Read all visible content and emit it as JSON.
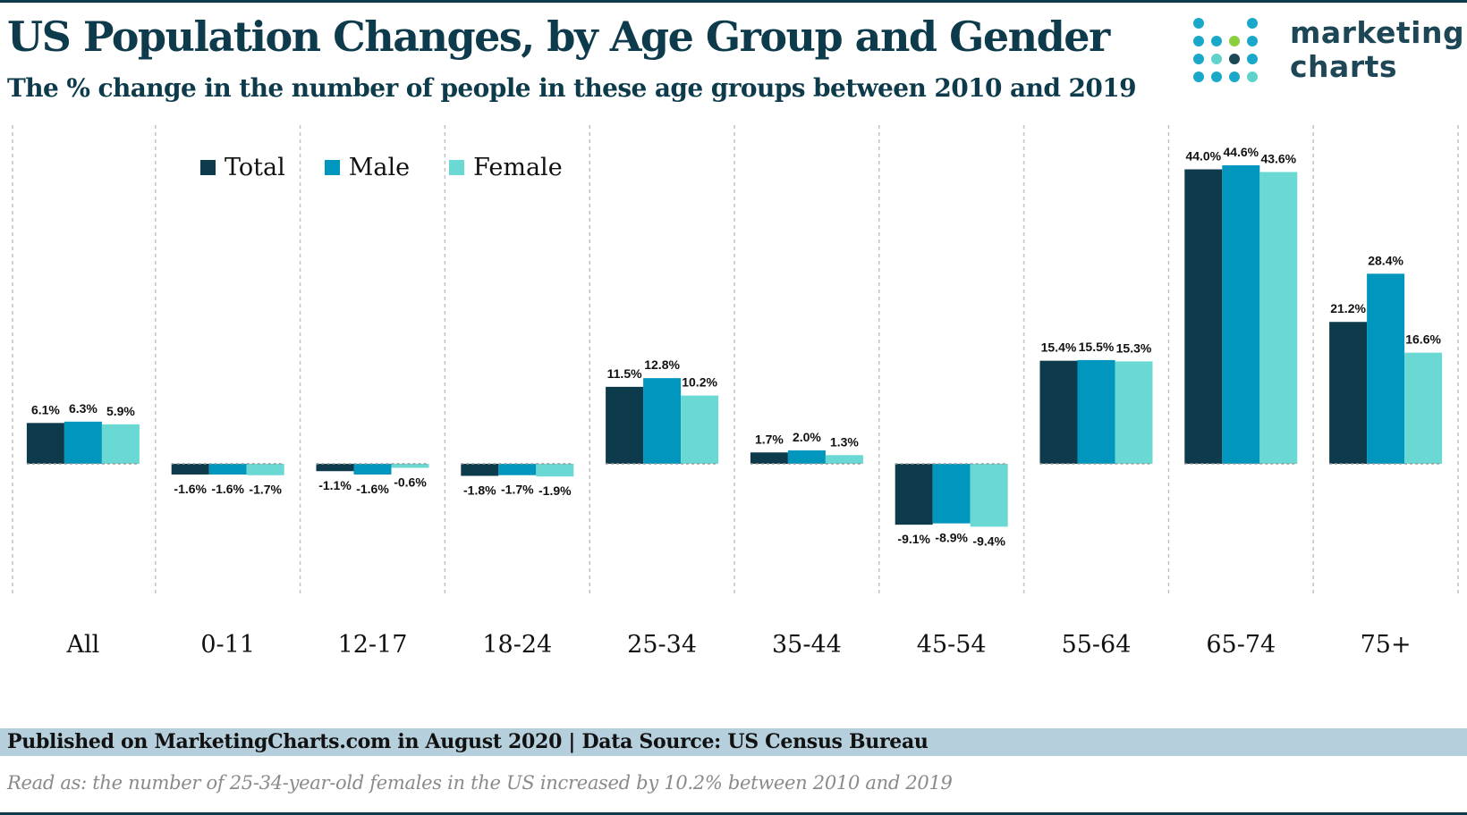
{
  "header": {
    "title": "US Population Changes, by Age Group and Gender",
    "subtitle": "The % change  in the number of people in these age groups between 2010 and 2019"
  },
  "logo": {
    "line1": "marketing",
    "line2": "charts",
    "colors": [
      "#1aa8c9",
      "#1d4656",
      "#8ccf3e",
      "#5fd3c9"
    ]
  },
  "colors": {
    "total": "#0e3b4c",
    "male": "#0096be",
    "female": "#6ad9d3",
    "footer_bg": "#b6cfdc"
  },
  "chart_data": {
    "type": "bar",
    "categories": [
      "All",
      "0-11",
      "12-17",
      "18-24",
      "25-34",
      "35-44",
      "45-54",
      "55-64",
      "65-74",
      "75+"
    ],
    "series": [
      {
        "name": "Total",
        "values": [
          6.1,
          -1.6,
          -1.1,
          -1.8,
          11.5,
          1.7,
          -9.1,
          15.4,
          44.0,
          21.2
        ]
      },
      {
        "name": "Male",
        "values": [
          6.3,
          -1.6,
          -1.6,
          -1.7,
          12.8,
          2.0,
          -8.9,
          15.5,
          44.6,
          28.4
        ]
      },
      {
        "name": "Female",
        "values": [
          5.9,
          -1.7,
          -0.6,
          -1.9,
          10.2,
          1.3,
          -9.4,
          15.3,
          43.6,
          16.6
        ]
      }
    ],
    "value_labels": [
      [
        "6.1%",
        "-1.6%",
        "-1.1%",
        "-1.8%",
        "11.5%",
        "1.7%",
        "-9.1%",
        "15.4%",
        "44.0%",
        "21.2%"
      ],
      [
        "6.3%",
        "-1.6%",
        "-1.6%",
        "-1.7%",
        "12.8%",
        "2.0%",
        "-8.9%",
        "15.5%",
        "44.6%",
        "28.4%"
      ],
      [
        "5.9%",
        "-1.7%",
        "-0.6%",
        "-1.9%",
        "10.2%",
        "1.3%",
        "-9.4%",
        "15.3%",
        "43.6%",
        "16.6%"
      ]
    ],
    "ylim": [
      -20,
      50
    ],
    "grid": false,
    "legend_position": "top-left"
  },
  "footer": {
    "source": "Published on MarketingCharts.com in August 2020 | Data Source: US Census Bureau",
    "note": "Read as: the number of 25-34-year-old females in the US increased by 10.2% between 2010 and 2019"
  }
}
